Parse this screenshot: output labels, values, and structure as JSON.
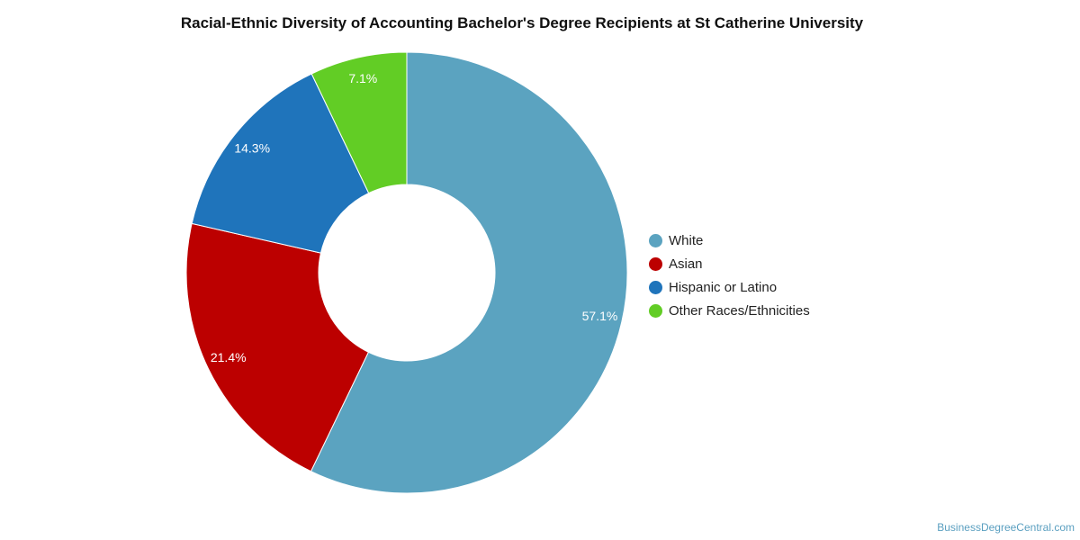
{
  "chart_data": {
    "type": "pie",
    "title": "Racial-Ethnic Diversity of Accounting Bachelor's Degree Recipients at St Catherine University",
    "donut": true,
    "legend_position": "right",
    "categories": [
      "White",
      "Asian",
      "Hispanic or Latino",
      "Other Races/Ethnicities"
    ],
    "values": [
      57.1,
      21.4,
      14.3,
      7.1
    ],
    "labels": [
      "57.1%",
      "21.4%",
      "14.3%",
      "7.1%"
    ],
    "colors": [
      "#5ba3c0",
      "#bc0000",
      "#1f74bb",
      "#62cd25"
    ]
  },
  "watermark": "BusinessDegreeCentral.com"
}
